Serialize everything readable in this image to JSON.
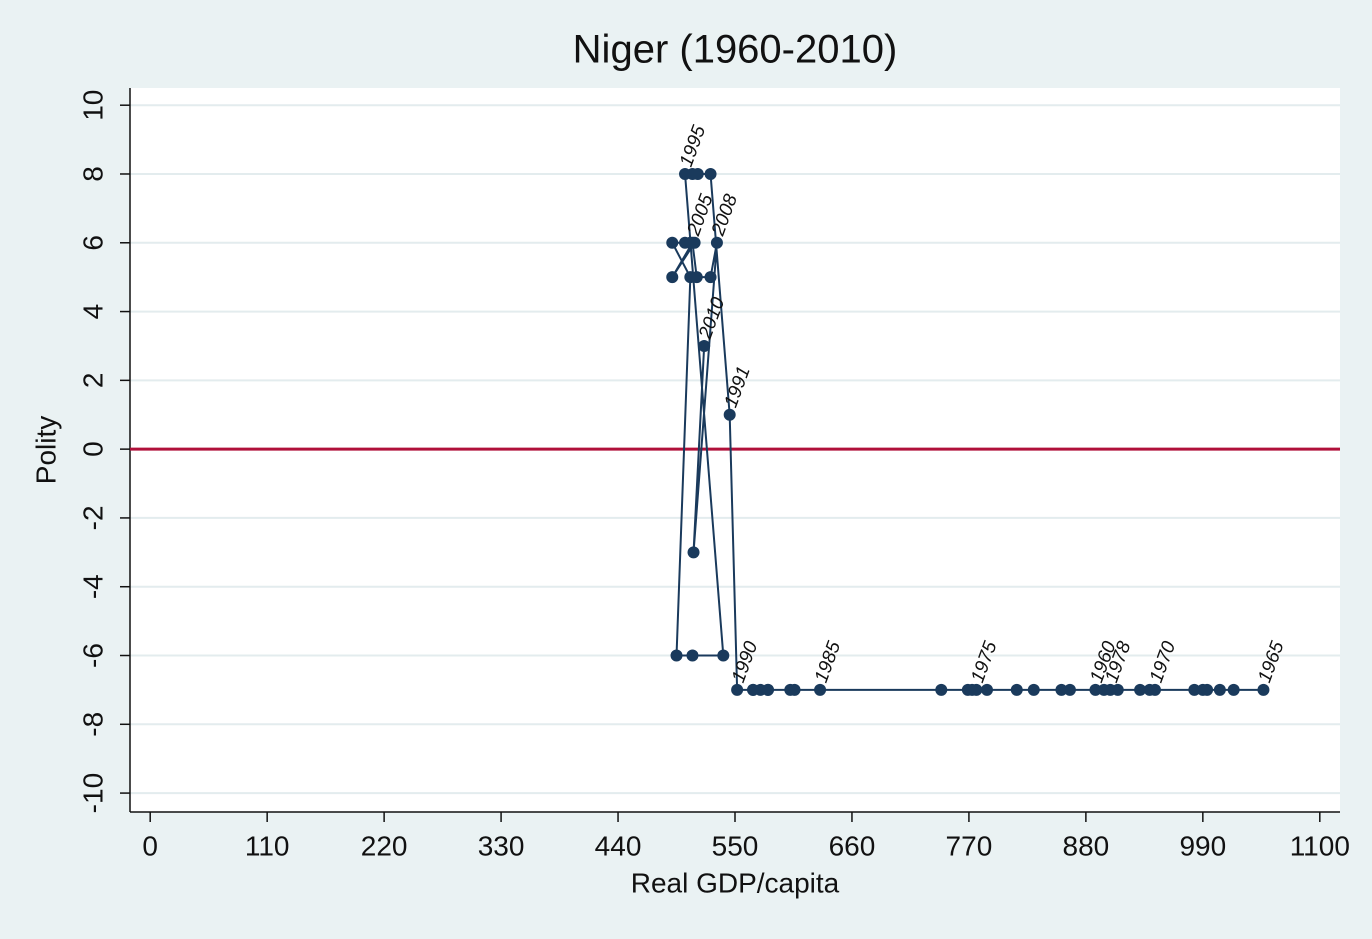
{
  "chart_data": {
    "type": "line",
    "title": "Niger (1960-2010)",
    "x_label": "Real GDP/capita",
    "y_label": "Polity",
    "x": [
      889,
      931,
      982,
      1006,
      1019,
      1047,
      990,
      994,
      940,
      910,
      945,
      897,
      857,
      831,
      815,
      777,
      865,
      787,
      903,
      773,
      769,
      744,
      602,
      606,
      581,
      630,
      574,
      581,
      567,
      567,
      552,
      545,
      527,
      515,
      510,
      503,
      539,
      510,
      495,
      508,
      491,
      503,
      508,
      512,
      491,
      510,
      514,
      527,
      533,
      511,
      521
    ],
    "values": [
      -7,
      -7,
      -7,
      -7,
      -7,
      -7,
      -7,
      -7,
      -7,
      -7,
      -7,
      -7,
      -7,
      -7,
      -7,
      -7,
      -7,
      -7,
      -7,
      -7,
      -7,
      -7,
      -7,
      -7,
      -7,
      -7,
      -7,
      -7,
      -7,
      -7,
      -7,
      1,
      8,
      8,
      8,
      8,
      -6,
      -6,
      -6,
      5,
      6,
      6,
      6,
      6,
      5,
      6,
      5,
      5,
      6,
      -3,
      3
    ],
    "point_labels": [
      "1960",
      null,
      null,
      null,
      null,
      "1965",
      null,
      null,
      null,
      null,
      "1970",
      null,
      null,
      null,
      null,
      "1975",
      null,
      null,
      "1978",
      null,
      null,
      null,
      null,
      null,
      null,
      "1985",
      null,
      null,
      null,
      null,
      "1990",
      "1991",
      null,
      null,
      null,
      "1995",
      null,
      null,
      null,
      null,
      null,
      null,
      null,
      null,
      null,
      "2005",
      null,
      null,
      "2008",
      null,
      "2010"
    ],
    "color": "#1a3a5c",
    "reference_line": {
      "value": 0,
      "color": "#b0103a"
    },
    "xlim": [
      -19,
      1119
    ],
    "ylim": [
      -10.55,
      10.5
    ],
    "xticks": [
      0,
      110,
      220,
      330,
      440,
      550,
      660,
      770,
      880,
      990,
      1100
    ],
    "yticks": [
      -10,
      -8,
      -6,
      -4,
      -2,
      0,
      2,
      4,
      6,
      8,
      10
    ],
    "grid": true
  }
}
